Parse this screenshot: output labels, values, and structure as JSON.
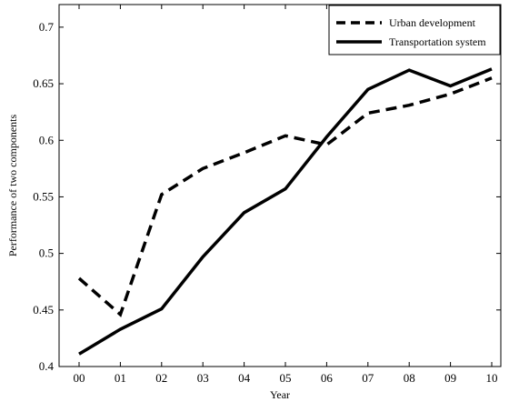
{
  "chart_data": {
    "type": "line",
    "title": "",
    "xlabel": "Year",
    "ylabel": "Performance of two components",
    "categories": [
      "00",
      "01",
      "02",
      "03",
      "04",
      "05",
      "06",
      "07",
      "08",
      "09",
      "10"
    ],
    "ylim": [
      0.4,
      0.72
    ],
    "yticks": [
      0.4,
      0.45,
      0.5,
      0.55,
      0.6,
      0.65,
      0.7
    ],
    "ytick_labels": [
      "0.4",
      "0.45",
      "0.5",
      "0.55",
      "0.6",
      "0.65",
      "0.7"
    ],
    "grid": false,
    "legend_position": "top-right",
    "series": [
      {
        "name": "Urban development",
        "style": "dashed",
        "color": "#000000",
        "values": [
          0.478,
          0.446,
          0.552,
          0.575,
          0.589,
          0.604,
          0.596,
          0.624,
          0.631,
          0.641,
          0.655
        ]
      },
      {
        "name": "Transportation system",
        "style": "solid",
        "color": "#000000",
        "values": [
          0.411,
          0.433,
          0.451,
          0.497,
          0.536,
          0.557,
          0.603,
          0.645,
          0.662,
          0.648,
          0.663
        ]
      }
    ]
  }
}
